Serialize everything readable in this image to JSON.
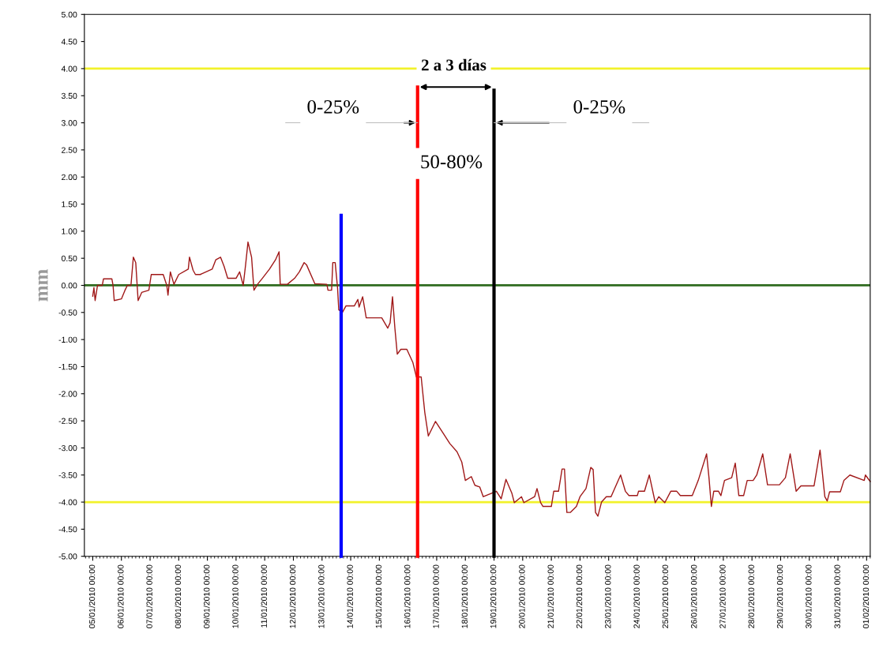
{
  "chart_data": {
    "type": "line",
    "ylabel": "mm",
    "xlim": [
      "2010-01-04T17:00",
      "2010-02-01T03:00"
    ],
    "ylim": [
      -5,
      5
    ],
    "yticks": [
      {
        "value": -5,
        "label": "-5.00"
      },
      {
        "value": -4.5,
        "label": "-4.50"
      },
      {
        "value": -4,
        "label": "-4.00"
      },
      {
        "value": -3.5,
        "label": "-3.50"
      },
      {
        "value": -3,
        "label": "-3.00"
      },
      {
        "value": -2.5,
        "label": "-2.50"
      },
      {
        "value": -2,
        "label": "-2.00"
      },
      {
        "value": -1.5,
        "label": "-1.50"
      },
      {
        "value": -1,
        "label": "-1.00"
      },
      {
        "value": -0.5,
        "label": "-0.50"
      },
      {
        "value": 0,
        "label": "0.00"
      },
      {
        "value": 0.5,
        "label": "0.50"
      },
      {
        "value": 1,
        "label": "1.00"
      },
      {
        "value": 1.5,
        "label": "1.50"
      },
      {
        "value": 2,
        "label": "2.00"
      },
      {
        "value": 2.5,
        "label": "2.50"
      },
      {
        "value": 3,
        "label": "3.00"
      },
      {
        "value": 3.5,
        "label": "3.50"
      },
      {
        "value": 4,
        "label": "4.00"
      },
      {
        "value": 4.5,
        "label": "4.50"
      },
      {
        "value": 5,
        "label": "5.00"
      }
    ],
    "xticks": [
      {
        "value": "2010-01-05",
        "label": "05/01/2010 00:00"
      },
      {
        "value": "2010-01-06",
        "label": "06/01/2010 00:00"
      },
      {
        "value": "2010-01-07",
        "label": "07/01/2010 00:00"
      },
      {
        "value": "2010-01-08",
        "label": "08/01/2010 00:00"
      },
      {
        "value": "2010-01-09",
        "label": "09/01/2010 00:00"
      },
      {
        "value": "2010-01-10",
        "label": "10/01/2010 00:00"
      },
      {
        "value": "2010-01-11",
        "label": "11/01/2010 00:00"
      },
      {
        "value": "2010-01-12",
        "label": "12/01/2010 00:00"
      },
      {
        "value": "2010-01-13",
        "label": "13/01/2010 00:00"
      },
      {
        "value": "2010-01-14",
        "label": "14/01/2010 00:00"
      },
      {
        "value": "2010-01-15",
        "label": "15/01/2010 00:00"
      },
      {
        "value": "2010-01-16",
        "label": "16/01/2010 00:00"
      },
      {
        "value": "2010-01-17",
        "label": "17/01/2010 00:00"
      },
      {
        "value": "2010-01-18",
        "label": "18/01/2010 00:00"
      },
      {
        "value": "2010-01-19",
        "label": "19/01/2010 00:00"
      },
      {
        "value": "2010-01-20",
        "label": "20/01/2010 00:00"
      },
      {
        "value": "2010-01-21",
        "label": "21/01/2010 00:00"
      },
      {
        "value": "2010-01-22",
        "label": "22/01/2010 00:00"
      },
      {
        "value": "2010-01-23",
        "label": "23/01/2010 00:00"
      },
      {
        "value": "2010-01-24",
        "label": "24/01/2010 00:00"
      },
      {
        "value": "2010-01-25",
        "label": "25/01/2010 00:00"
      },
      {
        "value": "2010-01-26",
        "label": "26/01/2010 00:00"
      },
      {
        "value": "2010-01-27",
        "label": "27/01/2010 00:00"
      },
      {
        "value": "2010-01-28",
        "label": "28/01/2010 00:00"
      },
      {
        "value": "2010-01-29",
        "label": "29/01/2010 00:00"
      },
      {
        "value": "2010-01-30",
        "label": "30/01/2010 00:00"
      },
      {
        "value": "2010-01-31",
        "label": "31/01/2010 00:00"
      },
      {
        "value": "2010-02-01",
        "label": "01/02/2010 00:00"
      }
    ],
    "grid": false,
    "marker": "none",
    "line_style": "solid",
    "series": [
      {
        "color": "#a01818",
        "x": [
          "2010-01-05T00:00",
          "2010-01-05T01:00",
          "2010-01-05T02:00",
          "2010-01-05T04:00",
          "2010-01-05T08:00",
          "2010-01-05T09:00",
          "2010-01-05T16:00",
          "2010-01-05T17:00",
          "2010-01-05T18:00",
          "2010-01-06T00:00",
          "2010-01-06T03:00",
          "2010-01-06T05:00",
          "2010-01-06T08:00",
          "2010-01-06T10:00",
          "2010-01-06T12:00",
          "2010-01-06T14:00",
          "2010-01-06T17:00",
          "2010-01-06T23:00",
          "2010-01-07T01:00",
          "2010-01-07T11:00",
          "2010-01-07T14:00",
          "2010-01-07T15:00",
          "2010-01-07T17:00",
          "2010-01-07T20:00",
          "2010-01-08T00:00",
          "2010-01-08T08:00",
          "2010-01-08T09:00",
          "2010-01-08T12:00",
          "2010-01-08T14:00",
          "2010-01-08T18:00",
          "2010-01-09T04:00",
          "2010-01-09T07:00",
          "2010-01-09T11:00",
          "2010-01-09T14:00",
          "2010-01-09T17:00",
          "2010-01-10T00:00",
          "2010-01-10T03:00",
          "2010-01-10T06:00",
          "2010-01-10T08:00",
          "2010-01-10T10:00",
          "2010-01-10T13:00",
          "2010-01-10T15:00",
          "2010-01-10T18:00",
          "2010-01-10T22:00",
          "2010-01-11T04:00",
          "2010-01-11T09:00",
          "2010-01-11T12:00",
          "2010-01-11T13:00",
          "2010-01-11T19:00",
          "2010-01-12T01:00",
          "2010-01-12T05:00",
          "2010-01-12T09:00",
          "2010-01-12T11:00",
          "2010-01-12T18:00",
          "2010-01-13T04:00",
          "2010-01-13T05:00",
          "2010-01-13T08:00",
          "2010-01-13T09:00",
          "2010-01-13T11:00",
          "2010-01-13T13:00",
          "2010-01-13T14:00",
          "2010-01-13T17:00",
          "2010-01-13T20:00",
          "2010-01-14T03:00",
          "2010-01-14T06:00",
          "2010-01-14T07:00",
          "2010-01-14T10:00",
          "2010-01-14T13:00",
          "2010-01-15T02:00",
          "2010-01-15T07:00",
          "2010-01-15T09:00",
          "2010-01-15T11:00",
          "2010-01-15T13:00",
          "2010-01-15T15:00",
          "2010-01-15T18:00",
          "2010-01-15T23:00",
          "2010-01-16T04:00",
          "2010-01-16T07:00",
          "2010-01-16T11:00",
          "2010-01-16T14:00",
          "2010-01-16T17:00",
          "2010-01-16T23:00",
          "2010-01-17T06:00",
          "2010-01-17T11:00",
          "2010-01-17T17:00",
          "2010-01-17T21:00",
          "2010-01-18T00:00",
          "2010-01-18T05:00",
          "2010-01-18T08:00",
          "2010-01-18T12:00",
          "2010-01-18T15:00",
          "2010-01-19T02:00",
          "2010-01-19T06:00",
          "2010-01-19T10:00",
          "2010-01-19T15:00",
          "2010-01-19T17:00",
          "2010-01-19T23:00",
          "2010-01-20T01:00",
          "2010-01-20T10:00",
          "2010-01-20T12:00",
          "2010-01-20T15:00",
          "2010-01-20T17:00",
          "2010-01-21T00:00",
          "2010-01-21T02:00",
          "2010-01-21T06:00",
          "2010-01-21T09:00",
          "2010-01-21T11:00",
          "2010-01-21T13:00",
          "2010-01-21T16:00",
          "2010-01-21T21:00",
          "2010-01-22T00:00",
          "2010-01-22T05:00",
          "2010-01-22T09:00",
          "2010-01-22T11:00",
          "2010-01-22T13:00",
          "2010-01-22T15:00",
          "2010-01-22T18:00",
          "2010-01-22T22:00",
          "2010-01-23T02:00",
          "2010-01-23T10:00",
          "2010-01-23T14:00",
          "2010-01-23T17:00",
          "2010-01-24T00:00",
          "2010-01-24T01:00",
          "2010-01-24T06:00",
          "2010-01-24T10:00",
          "2010-01-24T15:00",
          "2010-01-24T18:00",
          "2010-01-24T23:00",
          "2010-01-25T04:00",
          "2010-01-25T09:00",
          "2010-01-25T12:00",
          "2010-01-25T22:00",
          "2010-01-26T03:00",
          "2010-01-26T10:00",
          "2010-01-26T12:00",
          "2010-01-26T14:00",
          "2010-01-26T16:00",
          "2010-01-26T20:00",
          "2010-01-26T22:00",
          "2010-01-27T01:00",
          "2010-01-27T07:00",
          "2010-01-27T10:00",
          "2010-01-27T13:00",
          "2010-01-27T17:00",
          "2010-01-27T20:00",
          "2010-01-28T01:00",
          "2010-01-28T04:00",
          "2010-01-28T09:00",
          "2010-01-28T13:00",
          "2010-01-28T23:00",
          "2010-01-29T04:00",
          "2010-01-29T08:00",
          "2010-01-29T13:00",
          "2010-01-29T17:00",
          "2010-01-30T04:00",
          "2010-01-30T09:00",
          "2010-01-30T13:00",
          "2010-01-30T15:00",
          "2010-01-30T17:00",
          "2010-01-31T02:00",
          "2010-01-31T05:00",
          "2010-01-31T10:00",
          "2010-01-31T22:00",
          "2010-01-31T23:00",
          "2010-02-01T03:00"
        ],
        "values": [
          -0.2,
          -0.04,
          -0.28,
          0,
          0,
          0.12,
          0.12,
          0,
          -0.28,
          -0.25,
          -0.09,
          0,
          0,
          0.52,
          0.42,
          -0.28,
          -0.13,
          -0.09,
          0.2,
          0.2,
          0,
          -0.18,
          0.25,
          0.02,
          0.2,
          0.3,
          0.52,
          0.28,
          0.2,
          0.2,
          0.3,
          0.47,
          0.52,
          0.35,
          0.13,
          0.13,
          0.25,
          0,
          0.38,
          0.8,
          0.52,
          -0.09,
          0.02,
          0.13,
          0.3,
          0.47,
          0.62,
          0.02,
          0.02,
          0.13,
          0.25,
          0.42,
          0.38,
          0.03,
          0.02,
          -0.09,
          -0.09,
          0.42,
          0.42,
          -0.05,
          -0.45,
          -0.5,
          -0.38,
          -0.38,
          -0.26,
          -0.4,
          -0.21,
          -0.6,
          -0.6,
          -0.79,
          -0.69,
          -0.21,
          -0.79,
          -1.27,
          -1.18,
          -1.18,
          -1.42,
          -1.69,
          -1.69,
          -2.34,
          -2.78,
          -2.51,
          -2.75,
          -2.92,
          -3.07,
          -3.26,
          -3.6,
          -3.53,
          -3.69,
          -3.72,
          -3.9,
          -3.8,
          -3.94,
          -3.58,
          -3.84,
          -4.01,
          -3.9,
          -4.01,
          -3.9,
          -3.75,
          -4.01,
          -4.08,
          -4.08,
          -3.8,
          -3.8,
          -3.39,
          -3.39,
          -4.19,
          -4.19,
          -4.08,
          -3.9,
          -3.75,
          -3.36,
          -3.4,
          -4.19,
          -4.26,
          -4.0,
          -3.9,
          -3.9,
          -3.5,
          -3.8,
          -3.88,
          -3.88,
          -3.8,
          -3.8,
          -3.5,
          -4.01,
          -3.9,
          -4.01,
          -3.8,
          -3.8,
          -3.88,
          -3.88,
          -3.6,
          -3.11,
          -3.55,
          -4.08,
          -3.8,
          -3.8,
          -3.88,
          -3.6,
          -3.55,
          -3.28,
          -3.88,
          -3.88,
          -3.6,
          -3.6,
          -3.5,
          -3.11,
          -3.68,
          -3.68,
          -3.55,
          -3.11,
          -3.8,
          -3.7,
          -3.7,
          -3.04,
          -3.9,
          -3.98,
          -3.81,
          -3.81,
          -3.6,
          -3.5,
          -3.6,
          -3.5,
          -3.62
        ]
      },
      {
        "color": "#0000ff",
        "x": [
          "2010-01-13T16:00",
          "2010-01-13T16:00"
        ],
        "values": [
          -5,
          1.29
        ]
      },
      {
        "color": "#ff0000",
        "x": [
          "2010-01-16T08:00",
          "2010-01-16T08:00"
        ],
        "values": [
          -5,
          3.66
        ]
      },
      {
        "color": "#000000",
        "x": [
          "2010-01-19T00:00",
          "2010-01-19T00:00"
        ],
        "values": [
          -5,
          3.6
        ]
      }
    ],
    "ref_lines": [
      {
        "axis": "y",
        "value": 4,
        "color": "#f2f22a"
      },
      {
        "axis": "y",
        "value": -4,
        "color": "#f2f22a"
      },
      {
        "axis": "y",
        "value": 0,
        "color": "#2e6b1e"
      }
    ],
    "annotations": [
      "2 a 3 días",
      {
        "text": "0-25%",
        "x": "2010-01-16T08:00",
        "y": 3.0
      },
      {
        "text": "0-25%",
        "x": "2010-01-19T00:00",
        "y": 3.0
      },
      "50-80%"
    ]
  }
}
